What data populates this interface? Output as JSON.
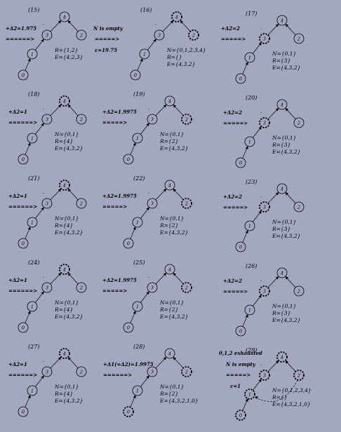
{
  "diagram": {
    "panels": [
      {
        "id": "15",
        "pos": [
          0,
          0
        ],
        "label": "(15)",
        "dashed": [],
        "info": [
          "R={1,2}",
          "E={4,2,3}"
        ],
        "ops": [
          {
            "t": "+Δ2=1.975",
            "dx": 8,
            "dy": 43
          },
          {
            "t": "======>",
            "dx": 8,
            "dy": 58
          }
        ]
      },
      {
        "id": "16",
        "pos": [
          160,
          0
        ],
        "label": "(16)",
        "dashed": [
          4,
          2
        ],
        "info": [
          "N={0,1,2,3,4}",
          "R={}",
          "E={4,3,2}"
        ],
        "ops": [
          {
            "t": "N is empty",
            "dx": -27,
            "dy": 43
          },
          {
            "t": "=====>",
            "dx": -25,
            "dy": 58
          },
          {
            "t": "ε=19.75",
            "dx": -25,
            "dy": 74
          }
        ]
      },
      {
        "id": "17",
        "pos": [
          310,
          5
        ],
        "label": "(17)",
        "dashed": [
          3
        ],
        "info": [
          "N={0,1}",
          "R={3}",
          "E={4,3,2}"
        ],
        "ops": [
          {
            "t": "+Δ2=2",
            "dx": 5,
            "dy": 38
          },
          {
            "t": "=====>",
            "dx": 5,
            "dy": 53
          }
        ]
      },
      {
        "id": "18",
        "pos": [
          0,
          120
        ],
        "label": "(18)",
        "dashed": [
          4
        ],
        "info": [
          "N={0,1}",
          "R={4}",
          "E={4,3,2}"
        ],
        "ops": [
          {
            "t": "+Δ2=1",
            "dx": 12,
            "dy": 42
          },
          {
            "t": "======>",
            "dx": 12,
            "dy": 57
          }
        ]
      },
      {
        "id": "19",
        "pos": [
          150,
          120
        ],
        "label": "(19)",
        "dashed": [
          2
        ],
        "info": [
          "N={0,1}",
          "R={2}",
          "E={4,3,2}"
        ],
        "ops": [
          {
            "t": "+Δ2=1.9975",
            "dx": -4,
            "dy": 42
          },
          {
            "t": "=====>",
            "dx": -4,
            "dy": 57
          }
        ]
      },
      {
        "id": "20",
        "pos": [
          310,
          125
        ],
        "label": "(20)",
        "dashed": [
          3
        ],
        "info": [
          "N={0,1}",
          "R={3}",
          "E={4,3,2}"
        ],
        "ops": [
          {
            "t": "+Δ2=2",
            "dx": 8,
            "dy": 38
          },
          {
            "t": "=====>",
            "dx": 8,
            "dy": 53
          }
        ]
      },
      {
        "id": "21",
        "pos": [
          0,
          240
        ],
        "label": "(21)",
        "dashed": [
          4
        ],
        "info": [
          "N={0,1}",
          "R={4}",
          "E={4,3,2}"
        ],
        "ops": [
          {
            "t": "+Δ2=1",
            "dx": 12,
            "dy": 42
          },
          {
            "t": "======>",
            "dx": 12,
            "dy": 57
          }
        ]
      },
      {
        "id": "22",
        "pos": [
          150,
          240
        ],
        "label": "(22)",
        "dashed": [
          2
        ],
        "info": [
          "N={0,1}",
          "R={2}",
          "E={4,3,2}"
        ],
        "ops": [
          {
            "t": "+Δ2=1.9975",
            "dx": -4,
            "dy": 42
          },
          {
            "t": "=====>",
            "dx": -4,
            "dy": 57
          }
        ]
      },
      {
        "id": "23",
        "pos": [
          310,
          245
        ],
        "label": "(23)",
        "dashed": [
          3
        ],
        "info": [
          "N={0,1}",
          "R={3}",
          "E={4,3,2}"
        ],
        "ops": [
          {
            "t": "+Δ2=2",
            "dx": 8,
            "dy": 38
          },
          {
            "t": "=====>",
            "dx": 8,
            "dy": 53
          }
        ]
      },
      {
        "id": "24",
        "pos": [
          0,
          360
        ],
        "label": "(24)",
        "dashed": [
          4
        ],
        "info": [
          "N={0,1}",
          "R={4}",
          "E={4,3,2}"
        ],
        "ops": [
          {
            "t": "+Δ2=1",
            "dx": 12,
            "dy": 42
          },
          {
            "t": "======>",
            "dx": 12,
            "dy": 57
          }
        ]
      },
      {
        "id": "25",
        "pos": [
          150,
          360
        ],
        "label": "(25)",
        "dashed": [
          2
        ],
        "info": [
          "N={0,1}",
          "R={2}",
          "E={4,3,2}"
        ],
        "ops": [
          {
            "t": "+Δ2=1.9975",
            "dx": -4,
            "dy": 42
          },
          {
            "t": "=====>",
            "dx": -4,
            "dy": 57
          }
        ]
      },
      {
        "id": "26",
        "pos": [
          310,
          365
        ],
        "label": "(26)",
        "dashed": [
          3
        ],
        "info": [
          "N={0,1}",
          "R={3}",
          "E={4,3,2}"
        ],
        "ops": [
          {
            "t": "+Δ2=2",
            "dx": 8,
            "dy": 38
          },
          {
            "t": "=====>",
            "dx": 8,
            "dy": 53
          }
        ]
      },
      {
        "id": "27",
        "pos": [
          0,
          480
        ],
        "label": "(27)",
        "dashed": [
          4
        ],
        "info": [
          "N={0,1}",
          "R={4}",
          "E={4,3,2}"
        ],
        "ops": [
          {
            "t": "+Δ2=1",
            "dx": 12,
            "dy": 42
          },
          {
            "t": "======>",
            "dx": 12,
            "dy": 57
          }
        ]
      },
      {
        "id": "28",
        "pos": [
          150,
          480
        ],
        "label": "(28)",
        "dashed": [
          2,
          0
        ],
        "info": [
          "N={0,1}",
          "R={2}",
          "E={4,3,2,1,0}"
        ],
        "ops": [
          {
            "t": "+Δ1(=Δ2)=1.9975",
            "dx": -3,
            "dy": 42
          },
          {
            "t": "======>",
            "dx": -3,
            "dy": 57
          }
        ]
      },
      {
        "id": "29",
        "pos": [
          310,
          485
        ],
        "label": "(29)",
        "dashed": [
          0,
          1,
          2,
          3,
          4
        ],
        "info": [
          "N={0,1,2,3,4}",
          "R={}",
          "E={4,3,2,1,0}"
        ],
        "back": true,
        "ops": [
          {
            "t": "0,1,2 exhausted",
            "dx": 2,
            "dy": 21
          },
          {
            "t": "N is empty",
            "dx": 12,
            "dy": 37
          },
          {
            "t": "=====>",
            "dx": 12,
            "dy": 52
          },
          {
            "t": "ε=1",
            "dx": 18,
            "dy": 68
          }
        ]
      }
    ]
  }
}
